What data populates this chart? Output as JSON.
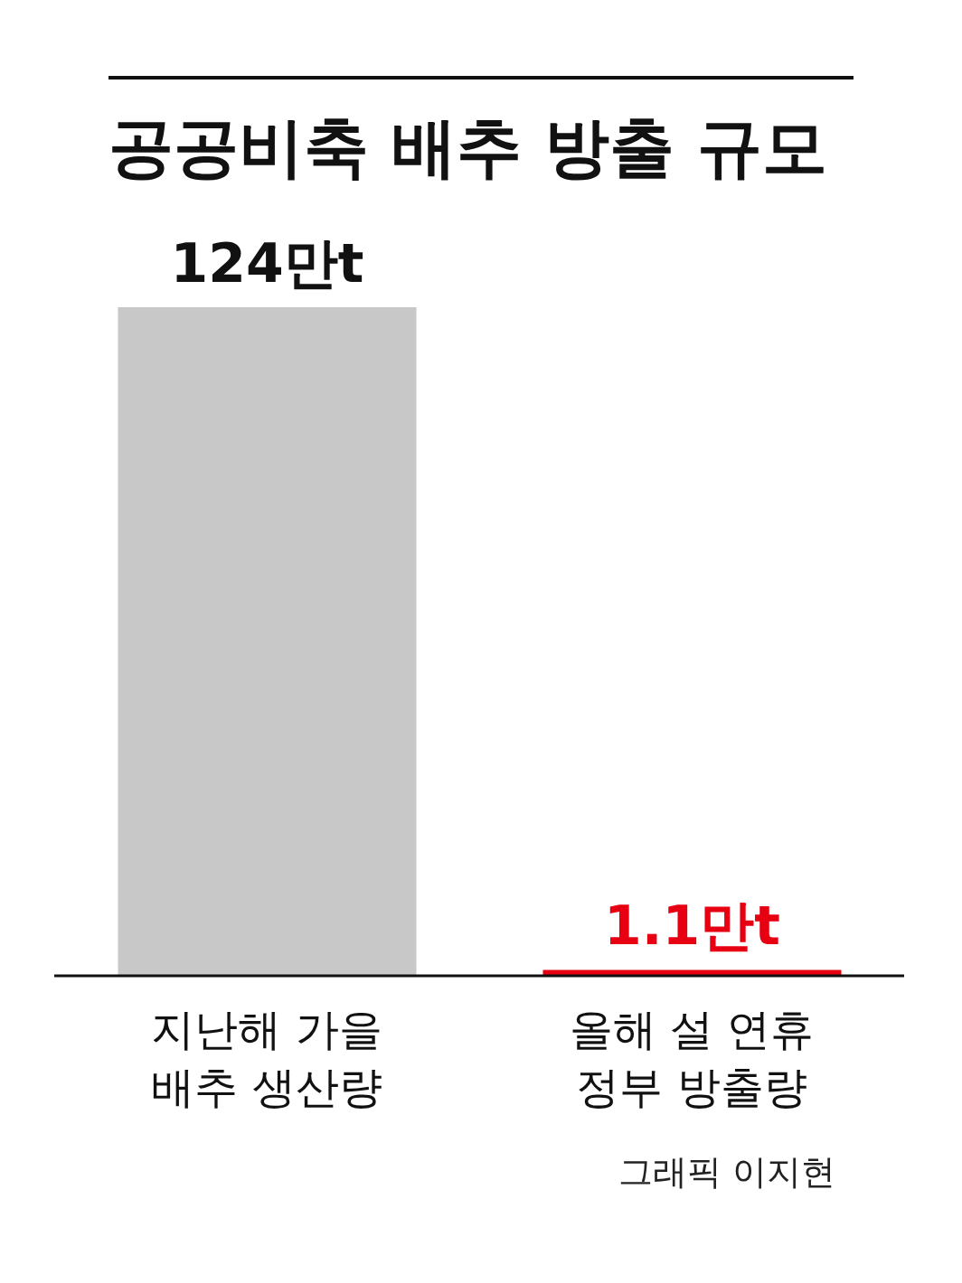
{
  "chart_data": {
    "type": "bar",
    "title": "공공비축 배추 방출 규모",
    "categories": [
      "지난해 가을 배추 생산량",
      "올해 설 연휴 정부 방출량"
    ],
    "values": [
      124,
      1.1
    ],
    "colors": [
      "#c8c8c8",
      "#e60012"
    ],
    "value_labels": [
      "124만t",
      "1.1만t"
    ],
    "annotations": [
      "그래픽 이지현"
    ]
  }
}
